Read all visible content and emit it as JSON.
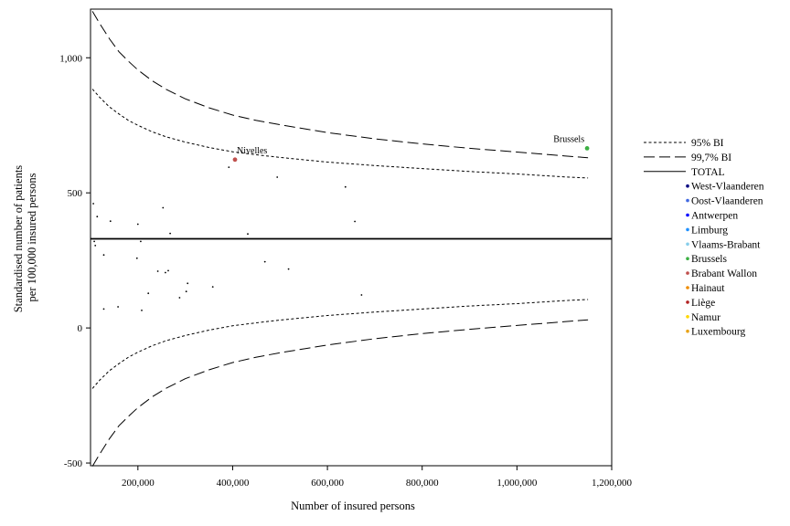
{
  "chart_data": {
    "type": "scatter",
    "xlabel": "Number of insured persons",
    "ylabel_lines": [
      "Standardised number of patients",
      "per 100,000 insured persons"
    ],
    "xlim": [
      100000,
      1200000
    ],
    "ylim": [
      -510,
      1180
    ],
    "xticks": [
      200000,
      400000,
      600000,
      800000,
      1000000,
      1200000
    ],
    "xtick_labels": [
      "200,000",
      "400,000",
      "600,000",
      "800,000",
      "1,000,000",
      "1,200,000"
    ],
    "yticks": [
      -500,
      0,
      500,
      1000
    ],
    "ytick_labels": [
      "-500",
      "0",
      "500",
      "1,000"
    ],
    "total": 330,
    "band_x": [
      104000,
      120000,
      140000,
      160000,
      180000,
      200000,
      230000,
      260000,
      300000,
      350000,
      400000,
      450000,
      500000,
      600000,
      700000,
      800000,
      900000,
      1000000,
      1100000,
      1150000
    ],
    "ci95_upper": [
      884,
      852,
      818,
      792,
      768,
      750,
      726,
      707,
      688,
      668,
      652,
      641,
      631,
      614,
      601,
      590,
      579,
      570,
      559,
      555
    ],
    "ci95_lower": [
      -224,
      -192,
      -158,
      -132,
      -108,
      -90,
      -66,
      -47,
      -28,
      -8,
      8,
      19,
      29,
      46,
      59,
      70,
      81,
      90,
      101,
      105
    ],
    "ci997_upper": [
      1172,
      1125,
      1070,
      1022,
      987,
      955,
      915,
      883,
      848,
      815,
      788,
      768,
      752,
      723,
      700,
      681,
      665,
      651,
      637,
      630
    ],
    "ci997_lower": [
      -512,
      -465,
      -410,
      -362,
      -327,
      -295,
      -255,
      -223,
      -188,
      -155,
      -128,
      -108,
      -92,
      -63,
      -40,
      -21,
      -5,
      9,
      23,
      30
    ],
    "legend": [
      {
        "label": "95% BI",
        "style": "short-dash"
      },
      {
        "label": "99,7% BI",
        "style": "long-dash"
      },
      {
        "label": "TOTAL",
        "style": "solid"
      },
      {
        "label": "West-Vlaanderen",
        "color": "#000080"
      },
      {
        "label": "Oost-Vlaanderen",
        "color": "#4169e1"
      },
      {
        "label": "Antwerpen",
        "color": "#0000ff"
      },
      {
        "label": "Limburg",
        "color": "#1e90ff"
      },
      {
        "label": "Vlaams-Brabant",
        "color": "#87ceeb"
      },
      {
        "label": "Brussels",
        "color": "#3cb043"
      },
      {
        "label": "Brabant Wallon",
        "color": "#c0504d"
      },
      {
        "label": "Hainaut",
        "color": "#f08c00"
      },
      {
        "label": "Liège",
        "color": "#b22222"
      },
      {
        "label": "Namur",
        "color": "#ffd700"
      },
      {
        "label": "Luxembourg",
        "color": "#e8a317"
      }
    ],
    "points": [
      {
        "x": 106000,
        "y": 460
      },
      {
        "x": 108000,
        "y": 320
      },
      {
        "x": 110000,
        "y": 305
      },
      {
        "x": 114000,
        "y": 412
      },
      {
        "x": 128000,
        "y": 270
      },
      {
        "x": 128000,
        "y": 70
      },
      {
        "x": 142000,
        "y": 395
      },
      {
        "x": 158000,
        "y": 78
      },
      {
        "x": 198000,
        "y": 258
      },
      {
        "x": 200000,
        "y": 384
      },
      {
        "x": 206000,
        "y": 320
      },
      {
        "x": 208000,
        "y": 65
      },
      {
        "x": 222000,
        "y": 128
      },
      {
        "x": 242000,
        "y": 210
      },
      {
        "x": 253000,
        "y": 445
      },
      {
        "x": 258000,
        "y": 205
      },
      {
        "x": 264000,
        "y": 212
      },
      {
        "x": 268000,
        "y": 350
      },
      {
        "x": 288000,
        "y": 112
      },
      {
        "x": 302000,
        "y": 135
      },
      {
        "x": 305000,
        "y": 165
      },
      {
        "x": 358000,
        "y": 152
      },
      {
        "x": 392000,
        "y": 595
      },
      {
        "x": 405000,
        "y": 623,
        "color": "#c0504d",
        "label": "Nivelles"
      },
      {
        "x": 432000,
        "y": 348
      },
      {
        "x": 468000,
        "y": 245
      },
      {
        "x": 494000,
        "y": 558
      },
      {
        "x": 518000,
        "y": 218
      },
      {
        "x": 638000,
        "y": 522
      },
      {
        "x": 658000,
        "y": 394
      },
      {
        "x": 672000,
        "y": 122
      },
      {
        "x": 1148000,
        "y": 665,
        "color": "#3cb043",
        "label": "Brussels"
      }
    ]
  }
}
